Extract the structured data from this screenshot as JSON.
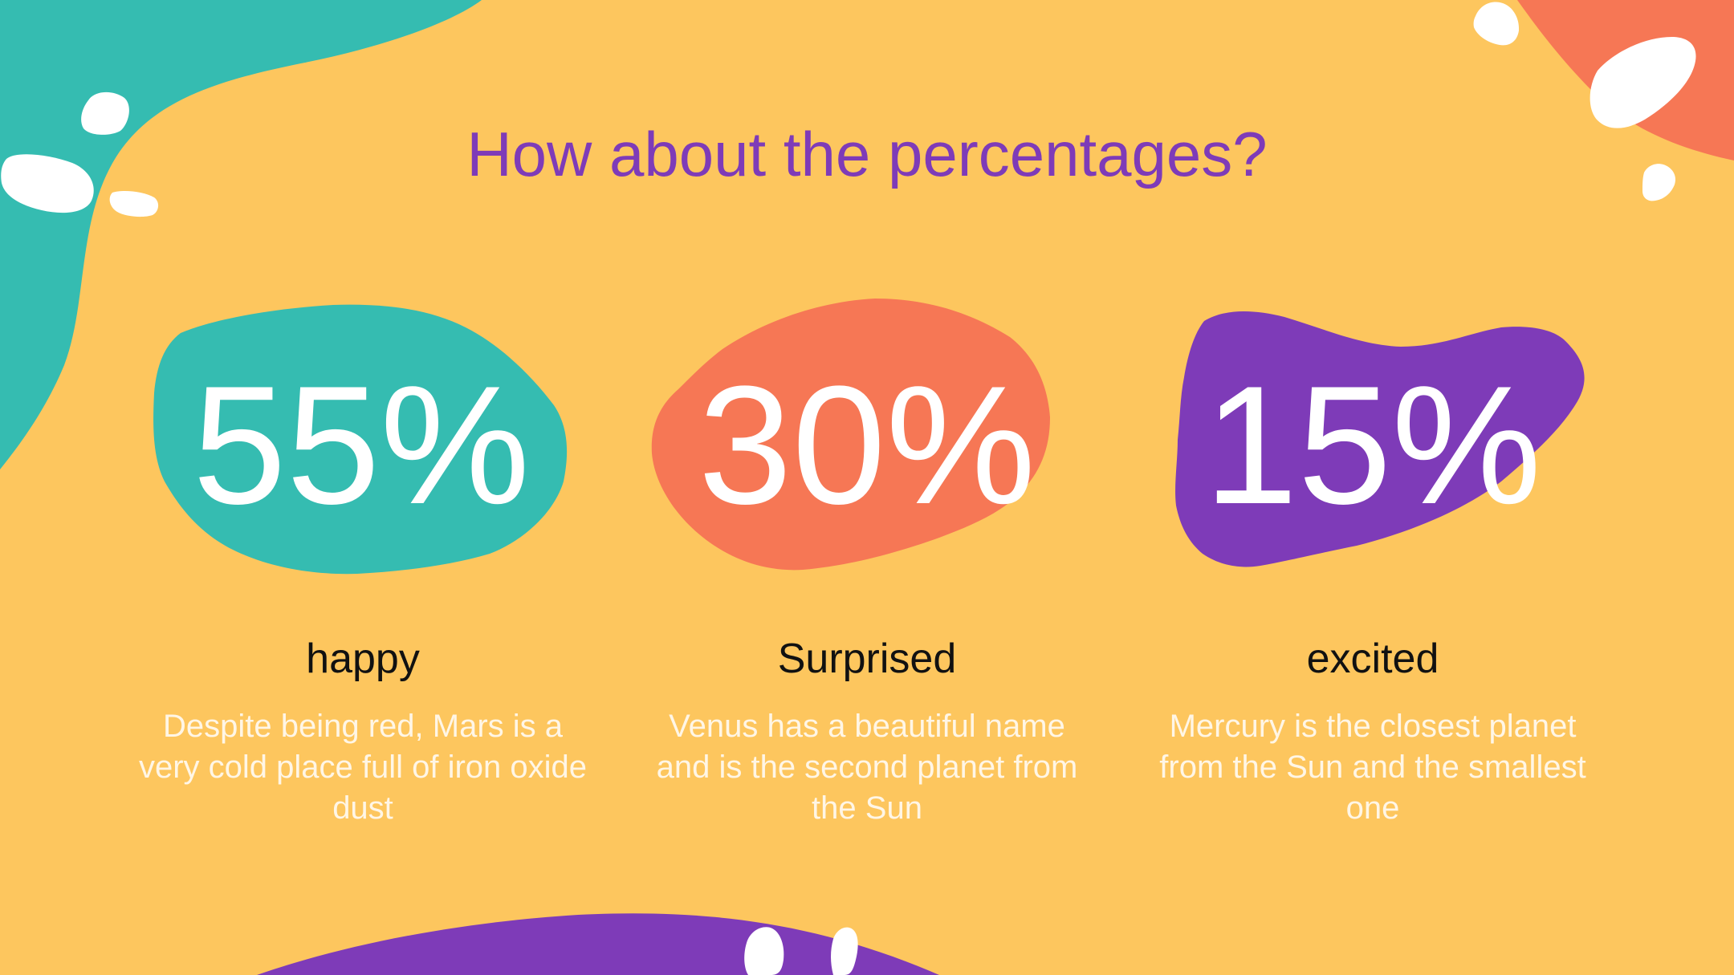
{
  "slide": {
    "title": "How about the percentages?"
  },
  "stats": [
    {
      "value": "55%",
      "label": "happy",
      "description": "Despite being red, Mars is a very cold place full of iron oxide dust",
      "blob_color": "#35BCB1"
    },
    {
      "value": "30%",
      "label": "Surprised",
      "description": "Venus has a beautiful name and is the second planet from the Sun",
      "blob_color": "#F67755"
    },
    {
      "value": "15%",
      "label": "excited",
      "description": "Mercury is the closest planet from the Sun and the smallest one",
      "blob_color": "#7E3BB8"
    }
  ],
  "colors": {
    "background": "#FDC65E",
    "title": "#7E3BB8",
    "teal": "#35BCB1",
    "coral": "#F67755",
    "purple": "#7E3BB8",
    "white": "#FFFFFF"
  }
}
